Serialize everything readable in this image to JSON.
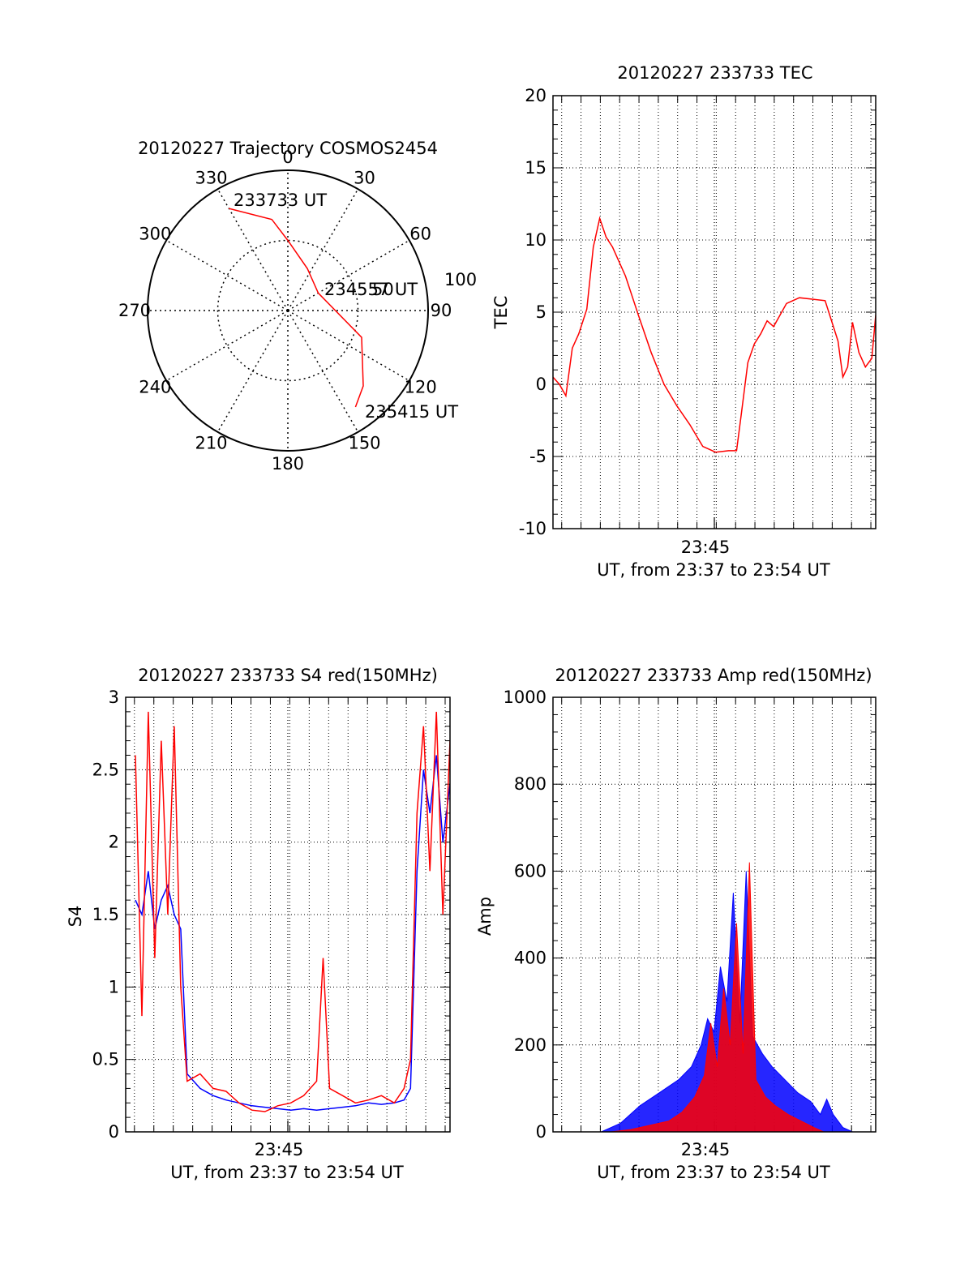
{
  "chart_data": [
    {
      "type": "polar",
      "title": "20120227 Trajectory COSMOS2454",
      "angle_labels": [
        "0",
        "30",
        "60",
        "90",
        "120",
        "150",
        "180",
        "210",
        "240",
        "270",
        "300",
        "330"
      ],
      "radial_label": "100",
      "rlim": [
        0,
        100
      ],
      "rings": [
        50,
        100
      ],
      "grid": "dotted",
      "series": [
        {
          "color": "#ff0000",
          "points": [
            {
              "az": 330,
              "r": 84
            },
            {
              "az": 350,
              "r": 66
            },
            {
              "az": 0,
              "r": 50
            },
            {
              "az": 25,
              "r": 33
            },
            {
              "az": 60,
              "r": 25
            },
            {
              "az": 110,
              "r": 56
            },
            {
              "az": 135,
              "r": 76
            },
            {
              "az": 145,
              "r": 84
            }
          ]
        }
      ],
      "annotations": [
        "233733 UT",
        "234557 UT",
        "235415 UT"
      ],
      "annotation_overlap": "50"
    },
    {
      "type": "line",
      "title": "20120227 233733 TEC",
      "ylabel": "TEC",
      "xlabel": "UT, from 23:37 to 23:54 UT",
      "xlim": [
        "23:37:33",
        "23:54:15"
      ],
      "ylim": [
        -10,
        20
      ],
      "yticks": [
        "20",
        "15",
        "10",
        "5",
        "0",
        "-5",
        "-10"
      ],
      "xtick": {
        "t": "23:45:54",
        "label": "23:45"
      },
      "grid": "dotted",
      "series": [
        {
          "color": "#ff0000",
          "x": [
            "23:37:33",
            "23:37:53",
            "23:38:13",
            "23:38:33",
            "23:38:53",
            "23:39:18",
            "23:39:38",
            "23:39:58",
            "23:40:18",
            "23:40:38",
            "23:41:18",
            "23:41:58",
            "23:42:38",
            "23:43:18",
            "23:43:58",
            "23:44:38",
            "23:45:18",
            "23:45:58",
            "23:46:38",
            "23:47:03",
            "23:47:18",
            "23:47:38",
            "23:47:58",
            "23:48:18",
            "23:48:38",
            "23:48:58",
            "23:49:38",
            "23:50:18",
            "23:50:58",
            "23:51:38",
            "23:52:18",
            "23:52:33",
            "23:52:48",
            "23:53:03",
            "23:53:23",
            "23:53:43",
            "23:54:03",
            "23:54:15"
          ],
          "y": [
            0.5,
            0.0,
            -0.8,
            2.5,
            3.5,
            5.2,
            9.5,
            11.5,
            10.2,
            9.5,
            7.5,
            4.8,
            2.2,
            0.0,
            -1.5,
            -2.8,
            -4.3,
            -4.7,
            -4.6,
            -4.6,
            -2.0,
            1.5,
            2.8,
            3.5,
            4.4,
            4.0,
            5.6,
            6.0,
            5.9,
            5.8,
            3.0,
            0.5,
            1.2,
            4.3,
            2.2,
            1.2,
            1.8,
            4.8
          ]
        }
      ]
    },
    {
      "type": "line",
      "title": "20120227 233733 S4 red(150MHz)",
      "ylabel": "S4",
      "xlabel": "UT, from 23:37 to 23:54 UT",
      "xlim": [
        "23:37:33",
        "23:54:15"
      ],
      "ylim": [
        0,
        3
      ],
      "yticks": [
        "3",
        "2.5",
        "2",
        "1.5",
        "1",
        "0.5",
        "0"
      ],
      "xtick": {
        "t": "23:45:54",
        "label": "23:45"
      },
      "grid": "dotted",
      "series": [
        {
          "color": "#0000ff",
          "x": [
            "23:38:03",
            "23:38:23",
            "23:38:43",
            "23:39:03",
            "23:39:23",
            "23:39:43",
            "23:40:03",
            "23:40:23",
            "23:40:43",
            "23:41:23",
            "23:42:03",
            "23:42:43",
            "23:43:23",
            "23:44:03",
            "23:44:43",
            "23:45:23",
            "23:46:03",
            "23:46:43",
            "23:47:23",
            "23:48:03",
            "23:48:43",
            "23:49:23",
            "23:50:03",
            "23:50:43",
            "23:51:23",
            "23:51:53",
            "23:52:13",
            "23:52:33",
            "23:52:53",
            "23:53:13",
            "23:53:33",
            "23:53:53",
            "23:54:15"
          ],
          "y": [
            1.6,
            1.5,
            1.8,
            1.4,
            1.6,
            1.7,
            1.5,
            1.4,
            0.4,
            0.3,
            0.25,
            0.22,
            0.2,
            0.18,
            0.17,
            0.16,
            0.15,
            0.16,
            0.15,
            0.16,
            0.17,
            0.18,
            0.2,
            0.19,
            0.2,
            0.22,
            0.3,
            1.8,
            2.5,
            2.2,
            2.6,
            2.0,
            2.4
          ]
        },
        {
          "color": "#ff0000",
          "x": [
            "23:38:03",
            "23:38:23",
            "23:38:43",
            "23:39:03",
            "23:39:23",
            "23:39:43",
            "23:40:03",
            "23:40:23",
            "23:40:43",
            "23:41:23",
            "23:42:03",
            "23:42:43",
            "23:43:23",
            "23:44:03",
            "23:44:43",
            "23:45:23",
            "23:46:03",
            "23:46:43",
            "23:47:23",
            "23:47:43",
            "23:48:03",
            "23:48:43",
            "23:49:23",
            "23:50:03",
            "23:50:43",
            "23:51:23",
            "23:51:53",
            "23:52:13",
            "23:52:33",
            "23:52:53",
            "23:53:13",
            "23:53:33",
            "23:53:53",
            "23:54:15"
          ],
          "y": [
            2.6,
            0.8,
            2.9,
            1.2,
            2.7,
            1.5,
            2.8,
            1.0,
            0.35,
            0.4,
            0.3,
            0.28,
            0.2,
            0.15,
            0.14,
            0.18,
            0.2,
            0.25,
            0.35,
            1.2,
            0.3,
            0.25,
            0.2,
            0.22,
            0.25,
            0.2,
            0.3,
            0.5,
            2.2,
            2.8,
            1.8,
            2.9,
            1.5,
            2.7
          ]
        }
      ]
    },
    {
      "type": "area",
      "title": "20120227 233733 Amp red(150MHz)",
      "ylabel": "Amp",
      "xlabel": "UT, from 23:37 to 23:54 UT",
      "xlim": [
        "23:37:33",
        "23:54:15"
      ],
      "ylim": [
        0,
        1000
      ],
      "yticks": [
        "1000",
        "800",
        "600",
        "400",
        "200",
        "0"
      ],
      "xtick": {
        "t": "23:45:54",
        "label": "23:45"
      },
      "grid": "dotted",
      "series": [
        {
          "color": "#0000ff",
          "x": [
            "23:37:33",
            "23:40:03",
            "23:41:03",
            "23:42:03",
            "23:43:03",
            "23:44:03",
            "23:44:43",
            "23:45:13",
            "23:45:33",
            "23:45:53",
            "23:46:13",
            "23:46:33",
            "23:46:53",
            "23:47:13",
            "23:47:33",
            "23:47:53",
            "23:48:23",
            "23:48:53",
            "23:49:33",
            "23:50:13",
            "23:50:53",
            "23:51:23",
            "23:51:43",
            "23:52:03",
            "23:52:33",
            "23:53:03",
            "23:54:15"
          ],
          "y": [
            0,
            0,
            20,
            60,
            90,
            120,
            150,
            200,
            260,
            230,
            380,
            300,
            550,
            250,
            600,
            220,
            180,
            150,
            120,
            90,
            70,
            40,
            75,
            40,
            10,
            0,
            0
          ]
        },
        {
          "color": "#ff0000",
          "x": [
            "23:37:33",
            "23:40:33",
            "23:41:33",
            "23:42:33",
            "23:43:33",
            "23:44:13",
            "23:44:53",
            "23:45:23",
            "23:45:43",
            "23:46:03",
            "23:46:23",
            "23:46:43",
            "23:47:03",
            "23:47:23",
            "23:47:43",
            "23:48:03",
            "23:48:33",
            "23:49:03",
            "23:49:43",
            "23:50:23",
            "23:51:03",
            "23:51:33",
            "23:54:15"
          ],
          "y": [
            0,
            0,
            5,
            15,
            25,
            45,
            80,
            130,
            250,
            150,
            330,
            200,
            480,
            180,
            620,
            120,
            80,
            60,
            40,
            25,
            10,
            0,
            0
          ]
        }
      ]
    }
  ]
}
